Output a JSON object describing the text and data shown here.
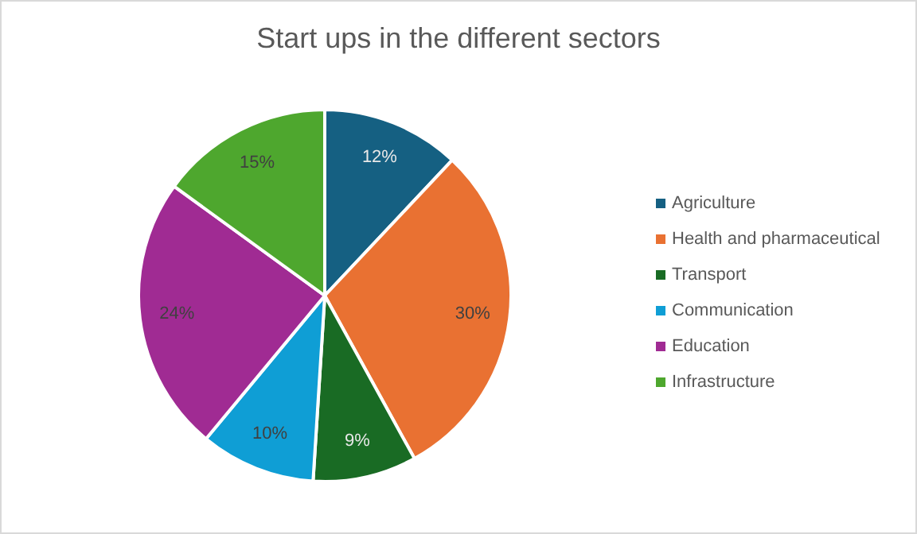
{
  "chart_data": {
    "type": "pie",
    "title": "Start ups in the different sectors",
    "categories": [
      "Agriculture",
      "Health and pharmaceutical",
      "Transport",
      "Communication",
      "Education",
      "Infrastructure"
    ],
    "values": [
      12,
      30,
      9,
      10,
      24,
      15
    ],
    "colors": [
      "#156082",
      "#e97132",
      "#196b24",
      "#0f9ed5",
      "#a02b93",
      "#4ea72e"
    ],
    "value_labels": [
      "12%",
      "30%",
      "9%",
      "10%",
      "24%",
      "15%"
    ],
    "legend": "right"
  }
}
